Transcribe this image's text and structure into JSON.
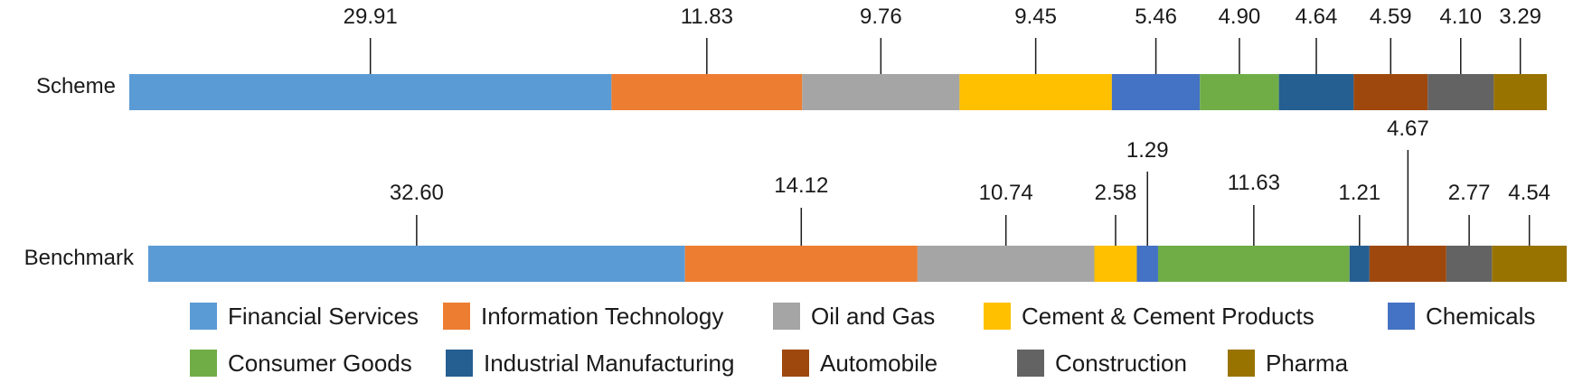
{
  "chart_data": {
    "type": "bar",
    "orientation": "horizontal",
    "stacked": true,
    "categories": [
      "Scheme",
      "Benchmark"
    ],
    "series": [
      {
        "name": "Financial Services",
        "color": "#5B9BD5",
        "values": [
          29.91,
          32.6
        ]
      },
      {
        "name": "Information Technology",
        "color": "#ED7D31",
        "values": [
          11.83,
          14.12
        ]
      },
      {
        "name": "Oil and Gas",
        "color": "#A5A5A5",
        "values": [
          9.76,
          10.74
        ]
      },
      {
        "name": "Cement & Cement Products",
        "color": "#FFC000",
        "values": [
          9.45,
          2.58
        ]
      },
      {
        "name": "Chemicals",
        "color": "#4472C4",
        "values": [
          5.46,
          1.29
        ]
      },
      {
        "name": "Consumer Goods",
        "color": "#70AD47",
        "values": [
          4.9,
          11.63
        ]
      },
      {
        "name": "Industrial Manufacturing",
        "color": "#255E91",
        "values": [
          4.64,
          1.21
        ]
      },
      {
        "name": "Automobile",
        "color": "#9E480E",
        "values": [
          4.59,
          4.67
        ]
      },
      {
        "name": "Construction",
        "color": "#636363",
        "values": [
          4.1,
          2.77
        ]
      },
      {
        "name": "Pharma",
        "color": "#997300",
        "values": [
          3.29,
          4.54
        ]
      }
    ],
    "data_labels": [
      [
        "29.91",
        "11.83",
        "9.76",
        "9.45",
        "5.46",
        "4.90",
        "4.64",
        "4.59",
        "4.10",
        "3.29"
      ],
      [
        "32.60",
        "14.12",
        "10.74",
        "2.58",
        "1.29",
        "11.63",
        "1.21",
        "4.67",
        "2.77",
        "4.54"
      ]
    ],
    "title": "",
    "xlabel": "",
    "ylabel": "",
    "grid": false,
    "legend_position": "bottom"
  }
}
